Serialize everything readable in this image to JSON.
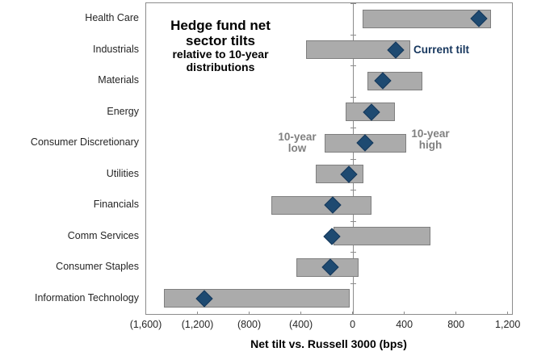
{
  "chart_data": {
    "type": "bar",
    "subtype": "horizontal-range-bars-with-markers",
    "title_lines": [
      "Hedge fund net",
      "sector tilts"
    ],
    "subtitle_lines": [
      "relative to 10-year",
      "distributions"
    ],
    "xlabel": "Net tilt vs. Russell 3000 (bps)",
    "categories": [
      "Health Care",
      "Industrials",
      "Materials",
      "Energy",
      "Consumer Discretionary",
      "Utilities",
      "Financials",
      "Comm Services",
      "Consumer Staples",
      "Information Technology"
    ],
    "series": [
      {
        "name": "10-year low",
        "values": [
          75,
          -365,
          110,
          -55,
          -220,
          -290,
          -630,
          -150,
          -440,
          -1460
        ]
      },
      {
        "name": "10-year high",
        "values": [
          1070,
          445,
          535,
          325,
          410,
          80,
          145,
          600,
          40,
          -25
        ]
      },
      {
        "name": "Current tilt",
        "values": [
          975,
          330,
          230,
          140,
          90,
          -30,
          -160,
          -165,
          -175,
          -1150
        ]
      }
    ],
    "xlim": [
      -1600,
      1230
    ],
    "xticks": [
      -1600,
      -1200,
      -800,
      -400,
      0,
      400,
      800,
      1200
    ],
    "xtick_labels": [
      "(1,600)",
      "(1,200)",
      "(800)",
      "(400)",
      "0",
      "400",
      "800",
      "1,200"
    ],
    "grid": false,
    "legend_position": "none",
    "annotations": {
      "current_tilt": {
        "text": "Current tilt"
      },
      "ten_year_low": {
        "lines": [
          "10-year",
          "low"
        ]
      },
      "ten_year_high": {
        "lines": [
          "10-year",
          "high"
        ]
      }
    },
    "colors": {
      "bar_fill": "#ABABAB",
      "bar_border": "#7F7F7F",
      "marker_navy": "#1E4A71",
      "marker_border": "#16395B",
      "axis_gray": "#8C8C8C",
      "text_dark": "#262626",
      "annotation_navy": "#17375E",
      "annotation_gray": "#808080"
    }
  }
}
